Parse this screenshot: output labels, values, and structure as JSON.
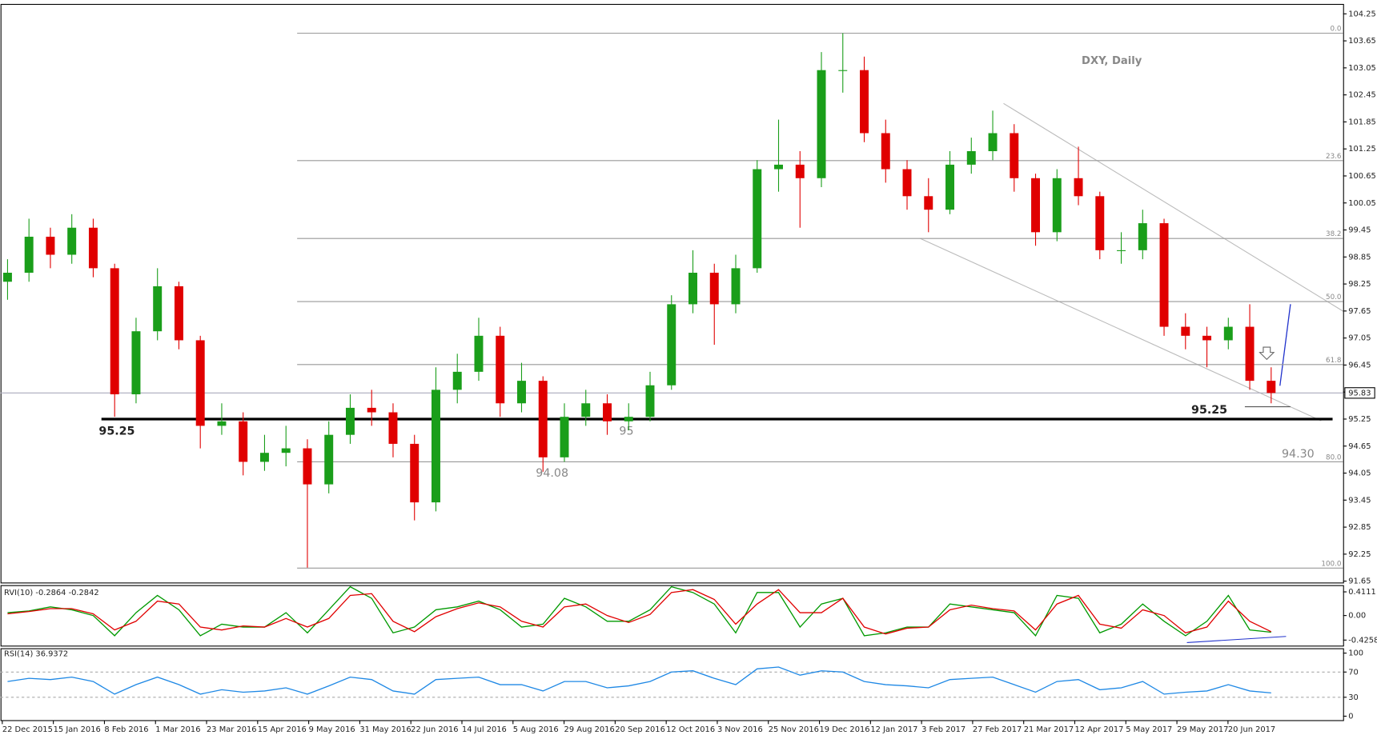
{
  "chart_data": {
    "type": "candlestick",
    "title": "DXY, Daily",
    "x_labels": [
      "22 Dec 2015",
      "15 Jan 2016",
      "8 Feb 2016",
      "1 Mar 2016",
      "23 Mar 2016",
      "15 Apr 2016",
      "9 May 2016",
      "31 May 2016",
      "22 Jun 2016",
      "14 Jul 2016",
      "5 Aug 2016",
      "29 Aug 2016",
      "20 Sep 2016",
      "12 Oct 2016",
      "3 Nov 2016",
      "25 Nov 2016",
      "19 Dec 2016",
      "12 Jan 2017",
      "3 Feb 2017",
      "27 Feb 2017",
      "21 Mar 2017",
      "12 Apr 2017",
      "5 May 2017",
      "29 May 2017",
      "20 Jun 2017"
    ],
    "open": [
      98.3,
      98.5,
      99.3,
      98.9,
      99.5,
      98.6,
      95.8,
      97.2,
      98.2,
      97.0,
      95.1,
      95.2,
      94.3,
      94.5,
      94.6,
      93.8,
      94.9,
      95.5,
      95.4,
      94.7,
      93.4,
      95.9,
      96.3,
      97.1,
      95.6,
      96.1,
      94.4,
      95.3,
      95.6,
      95.2,
      95.3,
      96.0,
      97.8,
      98.5,
      97.8,
      98.6,
      100.8,
      100.9,
      100.6,
      103.0,
      103.0,
      101.6,
      100.8,
      100.2,
      99.9,
      100.9,
      101.2,
      101.6,
      100.6,
      99.4,
      100.6,
      100.2,
      99.0,
      99.0,
      99.6,
      97.3,
      97.1,
      97.0,
      97.3,
      96.1
    ],
    "high": [
      98.8,
      99.7,
      99.5,
      99.8,
      99.7,
      98.7,
      97.5,
      98.6,
      98.3,
      97.1,
      95.6,
      95.4,
      94.9,
      95.1,
      94.8,
      95.2,
      95.8,
      95.9,
      95.6,
      94.9,
      96.4,
      96.7,
      97.5,
      97.3,
      96.5,
      96.2,
      95.6,
      95.9,
      95.8,
      95.6,
      96.3,
      98.0,
      99.0,
      98.7,
      98.9,
      101.0,
      101.9,
      101.2,
      103.4,
      103.82,
      103.3,
      101.9,
      101.0,
      100.6,
      101.2,
      101.5,
      102.1,
      101.8,
      100.7,
      100.8,
      101.3,
      100.3,
      99.4,
      99.9,
      99.7,
      97.6,
      97.3,
      97.5,
      97.8,
      96.4
    ],
    "low": [
      97.9,
      98.3,
      98.6,
      98.7,
      98.4,
      95.3,
      95.6,
      97.0,
      96.8,
      94.6,
      94.9,
      94.0,
      94.1,
      94.2,
      91.95,
      93.6,
      94.7,
      95.1,
      94.4,
      93.0,
      93.2,
      95.6,
      96.1,
      95.3,
      95.4,
      94.08,
      94.3,
      95.1,
      94.9,
      95.0,
      95.2,
      95.9,
      97.6,
      96.9,
      97.6,
      98.5,
      100.3,
      99.5,
      100.4,
      102.5,
      101.4,
      100.5,
      99.9,
      99.4,
      99.8,
      100.7,
      101.0,
      100.3,
      99.1,
      99.2,
      100.0,
      98.8,
      98.7,
      98.8,
      97.1,
      96.8,
      96.4,
      96.8,
      95.9,
      95.6
    ],
    "close": [
      98.5,
      99.3,
      98.9,
      99.5,
      98.6,
      95.8,
      97.2,
      98.2,
      97.0,
      95.1,
      95.2,
      94.3,
      94.5,
      94.6,
      93.8,
      94.9,
      95.5,
      95.4,
      94.7,
      93.4,
      95.9,
      96.3,
      97.1,
      95.6,
      96.1,
      94.4,
      95.3,
      95.6,
      95.2,
      95.3,
      96.0,
      97.8,
      98.5,
      97.8,
      98.6,
      100.8,
      100.9,
      100.6,
      103.0,
      103.0,
      101.6,
      100.8,
      100.2,
      99.9,
      100.9,
      101.2,
      101.6,
      100.6,
      99.4,
      100.6,
      100.2,
      99.0,
      99.0,
      99.6,
      97.3,
      97.1,
      97.0,
      97.3,
      96.1,
      95.83
    ],
    "up_color": "#1a9e1a",
    "down_color": "#e00000",
    "ylim": [
      91.61,
      104.46
    ],
    "yticks": [
      104.25,
      103.65,
      103.05,
      102.45,
      101.85,
      101.25,
      100.65,
      100.05,
      99.45,
      98.85,
      98.25,
      97.65,
      97.05,
      96.45,
      95.85,
      95.25,
      94.65,
      94.05,
      93.45,
      92.85,
      92.25,
      91.65
    ],
    "last_price": 95.83,
    "fib_levels": [
      {
        "value": 103.82,
        "label": "0.0"
      },
      {
        "value": 100.99,
        "label": "23.6"
      },
      {
        "value": 99.26,
        "label": "38.2"
      },
      {
        "value": 97.86,
        "label": "50.0"
      },
      {
        "value": 96.46,
        "label": "61.8"
      },
      {
        "value": 94.3,
        "label": "80.0"
      },
      {
        "value": 91.94,
        "label": "100.0"
      }
    ],
    "support_level": 95.25,
    "annotations": [
      "95",
      "94.08",
      "94.30"
    ],
    "rvi": {
      "title": "RVI(10) -0.2864 -0.2842",
      "ylim": [
        -0.53,
        0.52
      ],
      "yticks": [
        0.4111,
        {
          "value": 0,
          "label": "0.00"
        },
        -0.4258
      ],
      "series": [
        {
          "color": "#009900",
          "values": [
            0.05,
            0.08,
            0.15,
            0.1,
            0.0,
            -0.35,
            0.05,
            0.35,
            0.1,
            -0.35,
            -0.15,
            -0.2,
            -0.2,
            0.05,
            -0.3,
            0.1,
            0.5,
            0.3,
            -0.3,
            -0.2,
            0.1,
            0.15,
            0.25,
            0.1,
            -0.2,
            -0.15,
            0.3,
            0.15,
            -0.1,
            -0.1,
            0.1,
            0.5,
            0.4,
            0.2,
            -0.3,
            0.4,
            0.4,
            -0.2,
            0.2,
            0.3,
            -0.35,
            -0.3,
            -0.2,
            -0.2,
            0.2,
            0.15,
            0.1,
            0.05,
            -0.35,
            0.35,
            0.3,
            -0.3,
            -0.15,
            0.2,
            -0.1,
            -0.35,
            -0.1,
            0.35,
            -0.25,
            -0.29
          ]
        },
        {
          "color": "#e00000",
          "values": [
            0.03,
            0.07,
            0.12,
            0.12,
            0.03,
            -0.25,
            -0.1,
            0.25,
            0.2,
            -0.2,
            -0.25,
            -0.18,
            -0.2,
            -0.05,
            -0.2,
            -0.05,
            0.35,
            0.38,
            -0.1,
            -0.28,
            -0.02,
            0.12,
            0.22,
            0.15,
            -0.1,
            -0.2,
            0.15,
            0.2,
            0.0,
            -0.12,
            0.02,
            0.4,
            0.45,
            0.28,
            -0.15,
            0.2,
            0.45,
            0.05,
            0.05,
            0.3,
            -0.2,
            -0.32,
            -0.22,
            -0.2,
            0.1,
            0.18,
            0.12,
            0.08,
            -0.25,
            0.2,
            0.35,
            -0.15,
            -0.22,
            0.1,
            0.0,
            -0.3,
            -0.2,
            0.25,
            -0.1,
            -0.28
          ]
        }
      ]
    },
    "rsi": {
      "title": "RSI(14) 36.9372",
      "ylim": [
        -7,
        107
      ],
      "yticks": [
        100,
        70,
        30,
        0
      ],
      "levels": [
        70,
        30
      ],
      "color": "#1e88e5",
      "values": [
        55,
        60,
        58,
        62,
        55,
        35,
        50,
        62,
        50,
        35,
        42,
        38,
        40,
        45,
        35,
        48,
        62,
        58,
        40,
        35,
        58,
        60,
        62,
        50,
        50,
        40,
        55,
        55,
        45,
        48,
        55,
        70,
        72,
        60,
        50,
        75,
        78,
        65,
        72,
        70,
        55,
        50,
        48,
        45,
        58,
        60,
        62,
        50,
        38,
        55,
        58,
        42,
        45,
        55,
        35,
        38,
        40,
        50,
        40,
        37
      ]
    }
  }
}
